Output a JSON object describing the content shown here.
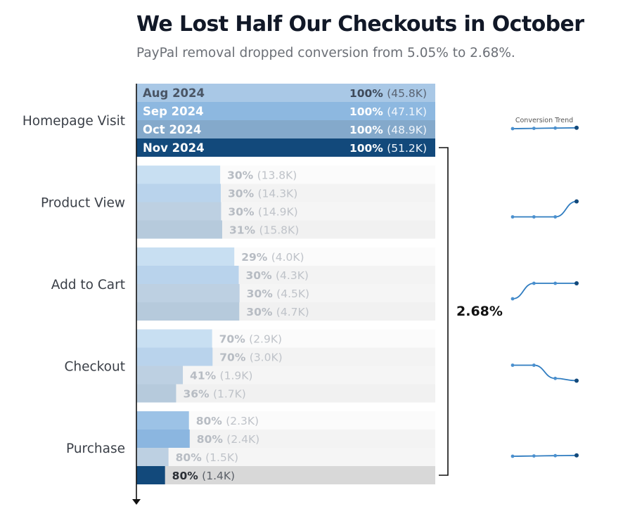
{
  "title": "We Lost Half Our Checkouts in October",
  "subtitle": "PayPal removal dropped conversion from 5.05% to 2.68%.",
  "trend_title": "Conversion Trend",
  "overall_conversion_label": "2.68%",
  "colors": {
    "month_fills": [
      "#a9c8e6",
      "#8db8e0",
      "#84a9cb",
      "#12497b"
    ],
    "stage_text": "#3a3f47",
    "sparkline": "#2f7cc0"
  },
  "chart_data": {
    "type": "bar",
    "title": "We Lost Half Our Checkouts in October",
    "series_names": [
      "Aug 2024",
      "Sep 2024",
      "Oct 2024",
      "Nov 2024"
    ],
    "stages": [
      {
        "name": "Homepage Visit",
        "rows": [
          {
            "pct": 100,
            "pct_label": "100%",
            "count_label": "(45.8K)"
          },
          {
            "pct": 100,
            "pct_label": "100%",
            "count_label": "(47.1K)"
          },
          {
            "pct": 100,
            "pct_label": "100%",
            "count_label": "(48.9K)"
          },
          {
            "pct": 100,
            "pct_label": "100%",
            "count_label": "(51.2K)"
          }
        ],
        "trend": [
          100,
          100,
          100,
          100
        ]
      },
      {
        "name": "Product View",
        "rows": [
          {
            "pct": 30,
            "pct_label": "30%",
            "count_label": "(13.8K)"
          },
          {
            "pct": 30,
            "pct_label": "30%",
            "count_label": "(14.3K)"
          },
          {
            "pct": 30,
            "pct_label": "30%",
            "count_label": "(14.9K)"
          },
          {
            "pct": 31,
            "pct_label": "31%",
            "count_label": "(15.8K)"
          }
        ],
        "trend": [
          30,
          30,
          30,
          31
        ]
      },
      {
        "name": "Add to Cart",
        "rows": [
          {
            "pct": 29,
            "pct_label": "29%",
            "count_label": "(4.0K)"
          },
          {
            "pct": 30,
            "pct_label": "30%",
            "count_label": "(4.3K)"
          },
          {
            "pct": 30,
            "pct_label": "30%",
            "count_label": "(4.5K)"
          },
          {
            "pct": 30,
            "pct_label": "30%",
            "count_label": "(4.7K)"
          }
        ],
        "trend": [
          29,
          30,
          30,
          30
        ]
      },
      {
        "name": "Checkout",
        "rows": [
          {
            "pct": 70,
            "pct_label": "70%",
            "count_label": "(2.9K)"
          },
          {
            "pct": 70,
            "pct_label": "70%",
            "count_label": "(3.0K)"
          },
          {
            "pct": 41,
            "pct_label": "41%",
            "count_label": "(1.9K)"
          },
          {
            "pct": 36,
            "pct_label": "36%",
            "count_label": "(1.7K)"
          }
        ],
        "trend": [
          70,
          70,
          41,
          36
        ]
      },
      {
        "name": "Purchase",
        "rows": [
          {
            "pct": 80,
            "pct_label": "80%",
            "count_label": "(2.3K)"
          },
          {
            "pct": 80,
            "pct_label": "80%",
            "count_label": "(2.4K)"
          },
          {
            "pct": 80,
            "pct_label": "80%",
            "count_label": "(1.5K)"
          },
          {
            "pct": 80,
            "pct_label": "80%",
            "count_label": "(1.4K)"
          }
        ],
        "trend": [
          80,
          80,
          80,
          80
        ]
      }
    ],
    "absolute_counts_k": [
      [
        45.8,
        47.1,
        48.9,
        51.2
      ],
      [
        13.8,
        14.3,
        14.9,
        15.8
      ],
      [
        4.0,
        4.3,
        4.5,
        4.7
      ],
      [
        2.9,
        3.0,
        1.9,
        1.7
      ],
      [
        2.3,
        2.4,
        1.5,
        1.4
      ]
    ],
    "highlighted_series": "Nov 2024",
    "overall_conversion": "2.68%"
  }
}
